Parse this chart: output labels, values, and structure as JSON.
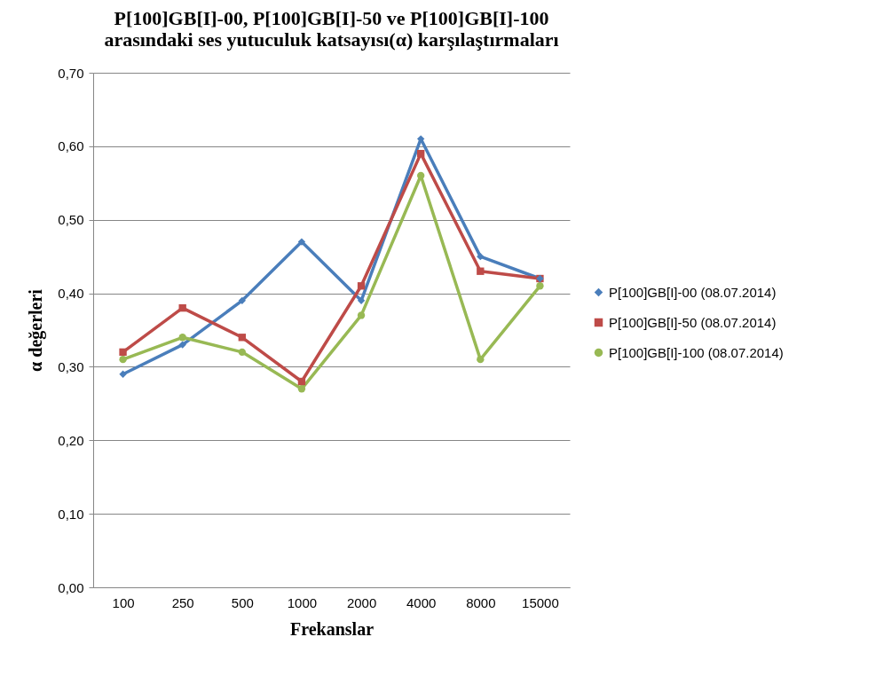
{
  "chart_data": {
    "type": "line",
    "title": "P[100]GB[I]-00, P[100]GB[I]-50 ve P[100]GB[I]-100 arasındaki ses yutuculuk katsayısı(α) karşılaştırmaları",
    "xlabel": "Frekanslar",
    "ylabel": "α değerleri",
    "categories": [
      "100",
      "250",
      "500",
      "1000",
      "2000",
      "4000",
      "8000",
      "15000"
    ],
    "series": [
      {
        "name": "P[100]GB[I]-00 (08.07.2014)",
        "color": "#4a7ebb",
        "marker": "diamond",
        "values": [
          0.29,
          0.33,
          0.39,
          0.47,
          0.39,
          0.61,
          0.45,
          0.42
        ]
      },
      {
        "name": "P[100]GB[I]-50 (08.07.2014)",
        "color": "#be4b48",
        "marker": "square",
        "values": [
          0.32,
          0.38,
          0.34,
          0.28,
          0.41,
          0.59,
          0.43,
          0.42
        ]
      },
      {
        "name": "P[100]GB[I]-100 (08.07.2014)",
        "color": "#98b954",
        "marker": "circle",
        "values": [
          0.31,
          0.34,
          0.32,
          0.27,
          0.37,
          0.56,
          0.31,
          0.41
        ]
      }
    ],
    "ylim": [
      0,
      0.7
    ],
    "yticks": [
      {
        "value": 0,
        "label": "0,00"
      },
      {
        "value": 0.1,
        "label": "0,10"
      },
      {
        "value": 0.2,
        "label": "0,20"
      },
      {
        "value": 0.3,
        "label": "0,30"
      },
      {
        "value": 0.4,
        "label": "0,40"
      },
      {
        "value": 0.5,
        "label": "0,50"
      },
      {
        "value": 0.6,
        "label": "0,60"
      },
      {
        "value": 0.7,
        "label": "0,70"
      }
    ],
    "grid": "y",
    "legend": "right",
    "line_style": "solid"
  }
}
